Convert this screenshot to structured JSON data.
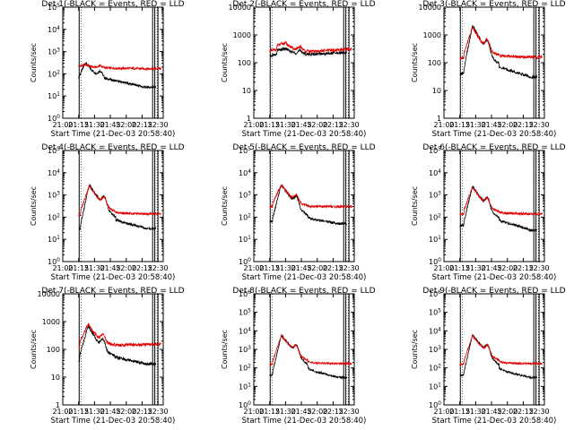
{
  "figure": {
    "xlabel": "Start Time (21-Dec-03 20:58:40)",
    "ylabel": "Counts/sec",
    "x_ticks": [
      "21:00",
      "21:15",
      "21:30",
      "21:45",
      "22:00",
      "22:15",
      "22:30"
    ],
    "colors": {
      "events": "#000000",
      "lld": "#e00000",
      "axis": "#000000"
    }
  },
  "chart_data": [
    {
      "type": "line",
      "title": "Det 1(-BLACK = Events, RED = LLD",
      "scale": "log",
      "ylim": [
        1,
        100000
      ],
      "ytick_labels": [
        "10^0",
        "10^1",
        "10^2",
        "10^3",
        "10^4",
        "10^5"
      ],
      "x_range_minutes": [
        0,
        95
      ],
      "peak_time": 21.5,
      "markers": [
        15.5,
        85,
        87,
        90
      ],
      "series": [
        {
          "name": "Events",
          "base": 50,
          "peak": 320,
          "pre": 30,
          "late": 25
        },
        {
          "name": "LLD",
          "base": 180,
          "peak": 260,
          "pre": 130,
          "late": 170
        }
      ]
    },
    {
      "type": "line",
      "title": "Det 2(-BLACK = Events, RED = LLD",
      "scale": "log",
      "ylim": [
        1,
        10000
      ],
      "ytick_labels": [
        "1",
        "10",
        "100",
        "1000",
        "10000"
      ],
      "x_range_minutes": [
        0,
        95
      ],
      "peak_time": 30,
      "markers": [
        15.5,
        85,
        87,
        90
      ],
      "series": [
        {
          "name": "Events",
          "base": 200,
          "peak": 320,
          "pre": 170,
          "late": 230
        },
        {
          "name": "LLD",
          "base": 250,
          "peak": 520,
          "pre": 260,
          "late": 300
        }
      ]
    },
    {
      "type": "line",
      "title": "Det 3(-BLACK = Events, RED = LLD",
      "scale": "log",
      "ylim": [
        1,
        10000
      ],
      "ytick_labels": [
        "1",
        "10",
        "100",
        "1000",
        "10000"
      ],
      "x_range_minutes": [
        0,
        95
      ],
      "peak_time": 27,
      "markers": [
        15.5,
        85,
        87,
        90
      ],
      "series": [
        {
          "name": "Events",
          "base": 60,
          "peak": 2200,
          "pre": 40,
          "late": 30
        },
        {
          "name": "LLD",
          "base": 170,
          "peak": 1900,
          "pre": 140,
          "late": 160
        }
      ]
    },
    {
      "type": "line",
      "title": "Det 4(-BLACK = Events, RED = LLD",
      "scale": "log",
      "ylim": [
        1,
        100000
      ],
      "ytick_labels": [
        "10^0",
        "10^1",
        "10^2",
        "10^3",
        "10^4",
        "10^5"
      ],
      "x_range_minutes": [
        0,
        95
      ],
      "peak_time": 25,
      "markers": [
        15.5,
        85,
        87,
        90
      ],
      "series": [
        {
          "name": "Events",
          "base": 60,
          "peak": 3000,
          "pre": 30,
          "late": 30
        },
        {
          "name": "LLD",
          "base": 150,
          "peak": 2500,
          "pre": 120,
          "late": 140
        }
      ]
    },
    {
      "type": "line",
      "title": "Det 5(-BLACK = Events, RED = LLD",
      "scale": "log",
      "ylim": [
        1,
        100000
      ],
      "ytick_labels": [
        "10^0",
        "10^1",
        "10^2",
        "10^3",
        "10^4",
        "10^5"
      ],
      "x_range_minutes": [
        0,
        95
      ],
      "peak_time": 26,
      "markers": [
        15.5,
        85,
        87,
        90
      ],
      "series": [
        {
          "name": "Events",
          "base": 80,
          "peak": 3000,
          "pre": 60,
          "late": 50
        },
        {
          "name": "LLD",
          "base": 300,
          "peak": 2800,
          "pre": 280,
          "late": 300
        }
      ]
    },
    {
      "type": "line",
      "title": "Det 6(-BLACK = Events, RED = LLD",
      "scale": "log",
      "ylim": [
        1,
        100000
      ],
      "ytick_labels": [
        "10^0",
        "10^1",
        "10^2",
        "10^3",
        "10^4",
        "10^5"
      ],
      "x_range_minutes": [
        0,
        95
      ],
      "peak_time": 27,
      "markers": [
        15.5,
        85,
        87,
        90
      ],
      "series": [
        {
          "name": "Events",
          "base": 60,
          "peak": 2500,
          "pre": 40,
          "late": 25
        },
        {
          "name": "LLD",
          "base": 150,
          "peak": 2200,
          "pre": 130,
          "late": 140
        }
      ]
    },
    {
      "type": "line",
      "title": "Det 7(-BLACK = Events, RED = LLD",
      "scale": "log",
      "ylim": [
        1,
        10000
      ],
      "ytick_labels": [
        "1",
        "10",
        "100",
        "1000",
        "10000"
      ],
      "x_range_minutes": [
        0,
        95
      ],
      "peak_time": 24,
      "markers": [
        15.5,
        85,
        87,
        90
      ],
      "series": [
        {
          "name": "Events",
          "base": 50,
          "peak": 700,
          "pre": 40,
          "late": 30
        },
        {
          "name": "LLD",
          "base": 140,
          "peak": 800,
          "pre": 110,
          "late": 150
        }
      ]
    },
    {
      "type": "line",
      "title": "Det 8(-BLACK = Events, RED = LLD",
      "scale": "log",
      "ylim": [
        1,
        1000000
      ],
      "ytick_labels": [
        "10^0",
        "10^1",
        "10^2",
        "10^3",
        "10^4",
        "10^5",
        "10^6"
      ],
      "x_range_minutes": [
        0,
        95
      ],
      "peak_time": 26,
      "markers": [
        15.5,
        85,
        87,
        90
      ],
      "series": [
        {
          "name": "Events",
          "base": 60,
          "peak": 6000,
          "pre": 40,
          "late": 30
        },
        {
          "name": "LLD",
          "base": 180,
          "peak": 5500,
          "pre": 150,
          "late": 170
        }
      ]
    },
    {
      "type": "line",
      "title": "Det 9(-BLACK = Events, RED = LLD",
      "scale": "log",
      "ylim": [
        1,
        1000000
      ],
      "ytick_labels": [
        "10^0",
        "10^1",
        "10^2",
        "10^3",
        "10^4",
        "10^5",
        "10^6"
      ],
      "x_range_minutes": [
        0,
        95
      ],
      "peak_time": 27,
      "markers": [
        15.5,
        85,
        87,
        90
      ],
      "series": [
        {
          "name": "Events",
          "base": 60,
          "peak": 6000,
          "pre": 40,
          "late": 30
        },
        {
          "name": "LLD",
          "base": 180,
          "peak": 5500,
          "pre": 150,
          "late": 170
        }
      ]
    }
  ]
}
